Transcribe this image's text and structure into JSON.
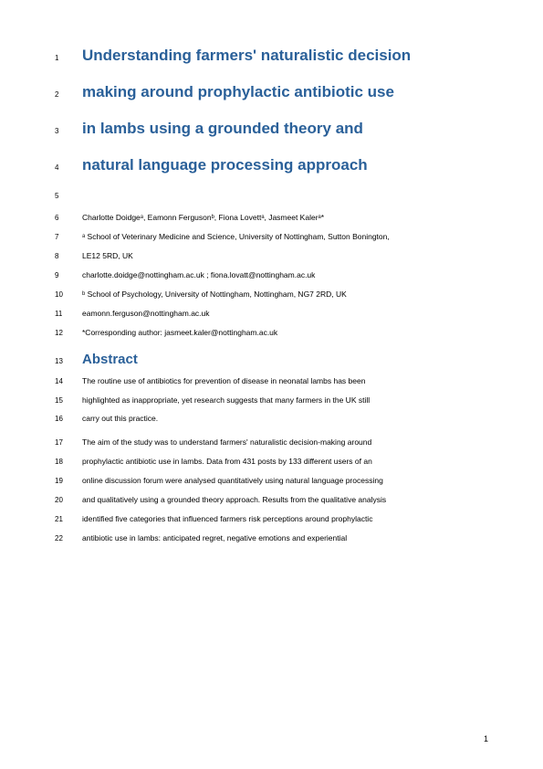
{
  "title": {
    "lines": [
      "Understanding farmers' naturalistic decision",
      "making around prophylactic antibiotic use",
      "in lambs using a grounded theory and",
      "natural language processing approach"
    ]
  },
  "authors": "Charlotte Doidgeᵃ, Eamonn Fergusonᵇ, Fiona Lovettᵃ, Jasmeet Kalerᵃ*",
  "affiliations": {
    "a1": "ᵃ School of Veterinary Medicine and Science, University of Nottingham, Sutton Bonington,",
    "a2": "LE12 5RD, UK",
    "emails_a": "charlotte.doidge@nottingham.ac.uk ; fiona.lovatt@nottingham.ac.uk",
    "b": "ᵇ School of Psychology, University of Nottingham, Nottingham, NG7 2RD, UK",
    "email_b": "eamonn.ferguson@nottingham.ac.uk",
    "corresponding": "*Corresponding author: jasmeet.kaler@nottingham.ac.uk"
  },
  "abstract_heading": "Abstract",
  "abstract_p1": [
    "The routine use of antibiotics for prevention of disease in neonatal lambs has been",
    "highlighted as inappropriate, yet research suggests that many farmers in the UK still",
    "carry out this practice."
  ],
  "abstract_p2": [
    "The aim of the study was to understand farmers' naturalistic decision-making around",
    "prophylactic antibiotic use in lambs. Data from 431 posts by 133 different users of an",
    "online discussion forum were analysed quantitatively using natural language processing",
    "and qualitatively using a grounded theory approach. Results from the qualitative analysis",
    "identified five categories that influenced farmers risk perceptions around prophylactic",
    "antibiotic use in lambs: anticipated regret, negative emotions and experiential"
  ],
  "line_numbers": [
    "1",
    "2",
    "3",
    "4",
    "5",
    "6",
    "7",
    "8",
    "9",
    "10",
    "11",
    "12",
    "13",
    "14",
    "15",
    "16",
    "17",
    "18",
    "19",
    "20",
    "21",
    "22"
  ],
  "page_number": "1",
  "colors": {
    "heading": "#2a6099",
    "body": "#000000",
    "background": "#ffffff"
  }
}
